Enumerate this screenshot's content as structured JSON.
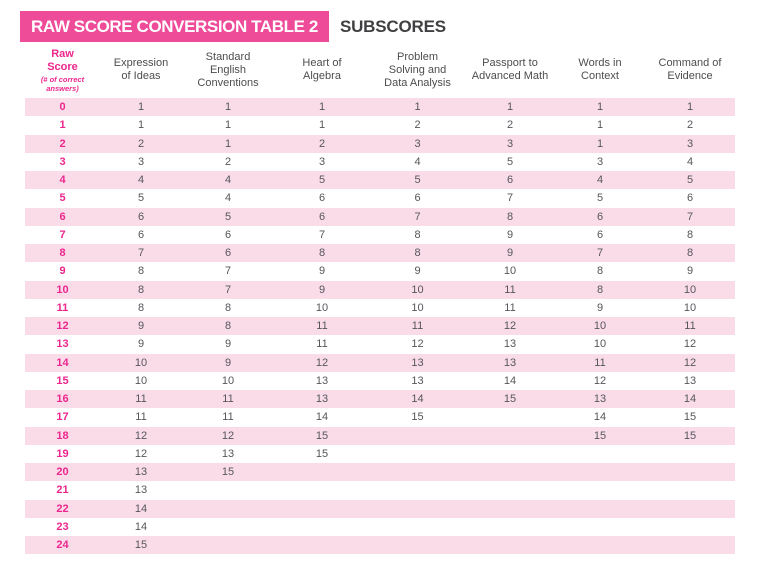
{
  "title": {
    "banner": "RAW SCORE CONVERSION TABLE 2",
    "subtitle": "SUBSCORES"
  },
  "colors": {
    "banner_bg": "#EE4B99",
    "banner_text": "#FFFFFF",
    "subtitle_text": "#404042",
    "header_text": "#4D4D4F",
    "stripe": "#FADCE9",
    "raw_text": "#EC268D",
    "cell_text": "#55565A"
  },
  "table": {
    "raw_header": {
      "title": "Raw\nScore",
      "note": "(# of correct\nanswers)"
    },
    "columns": [
      {
        "id": "expression-of-ideas",
        "label": "Expression\nof Ideas"
      },
      {
        "id": "standard-english-conventions",
        "label": "Standard\nEnglish\nConventions"
      },
      {
        "id": "heart-of-algebra",
        "label": "Heart of\nAlgebra"
      },
      {
        "id": "problem-solving-data-analysis",
        "label": "Problem\nSolving and\nData Analysis"
      },
      {
        "id": "passport-to-advanced-math",
        "label": "Passport to\nAdvanced Math"
      },
      {
        "id": "words-in-context",
        "label": "Words in\nContext"
      },
      {
        "id": "command-of-evidence",
        "label": "Command of\nEvidence"
      }
    ],
    "rows": [
      {
        "raw": "0",
        "values": [
          "1",
          "1",
          "1",
          "1",
          "1",
          "1",
          "1"
        ]
      },
      {
        "raw": "1",
        "values": [
          "1",
          "1",
          "1",
          "2",
          "2",
          "1",
          "2"
        ]
      },
      {
        "raw": "2",
        "values": [
          "2",
          "1",
          "2",
          "3",
          "3",
          "1",
          "3"
        ]
      },
      {
        "raw": "3",
        "values": [
          "3",
          "2",
          "3",
          "4",
          "5",
          "3",
          "4"
        ]
      },
      {
        "raw": "4",
        "values": [
          "4",
          "4",
          "5",
          "5",
          "6",
          "4",
          "5"
        ]
      },
      {
        "raw": "5",
        "values": [
          "5",
          "4",
          "6",
          "6",
          "7",
          "5",
          "6"
        ]
      },
      {
        "raw": "6",
        "values": [
          "6",
          "5",
          "6",
          "7",
          "8",
          "6",
          "7"
        ]
      },
      {
        "raw": "7",
        "values": [
          "6",
          "6",
          "7",
          "8",
          "9",
          "6",
          "8"
        ]
      },
      {
        "raw": "8",
        "values": [
          "7",
          "6",
          "8",
          "8",
          "9",
          "7",
          "8"
        ]
      },
      {
        "raw": "9",
        "values": [
          "8",
          "7",
          "9",
          "9",
          "10",
          "8",
          "9"
        ]
      },
      {
        "raw": "10",
        "values": [
          "8",
          "7",
          "9",
          "10",
          "11",
          "8",
          "10"
        ]
      },
      {
        "raw": "11",
        "values": [
          "8",
          "8",
          "10",
          "10",
          "11",
          "9",
          "10"
        ]
      },
      {
        "raw": "12",
        "values": [
          "9",
          "8",
          "11",
          "11",
          "12",
          "10",
          "11"
        ]
      },
      {
        "raw": "13",
        "values": [
          "9",
          "9",
          "11",
          "12",
          "13",
          "10",
          "12"
        ]
      },
      {
        "raw": "14",
        "values": [
          "10",
          "9",
          "12",
          "13",
          "13",
          "11",
          "12"
        ]
      },
      {
        "raw": "15",
        "values": [
          "10",
          "10",
          "13",
          "13",
          "14",
          "12",
          "13"
        ]
      },
      {
        "raw": "16",
        "values": [
          "11",
          "11",
          "13",
          "14",
          "15",
          "13",
          "14"
        ]
      },
      {
        "raw": "17",
        "values": [
          "11",
          "11",
          "14",
          "15",
          "",
          "14",
          "15"
        ]
      },
      {
        "raw": "18",
        "values": [
          "12",
          "12",
          "15",
          "",
          "",
          "15",
          "15"
        ]
      },
      {
        "raw": "19",
        "values": [
          "12",
          "13",
          "15",
          "",
          "",
          "",
          ""
        ]
      },
      {
        "raw": "20",
        "values": [
          "13",
          "15",
          "",
          "",
          "",
          "",
          ""
        ]
      },
      {
        "raw": "21",
        "values": [
          "13",
          "",
          "",
          "",
          "",
          "",
          ""
        ]
      },
      {
        "raw": "22",
        "values": [
          "14",
          "",
          "",
          "",
          "",
          "",
          ""
        ]
      },
      {
        "raw": "23",
        "values": [
          "14",
          "",
          "",
          "",
          "",
          "",
          ""
        ]
      },
      {
        "raw": "24",
        "values": [
          "15",
          "",
          "",
          "",
          "",
          "",
          ""
        ]
      }
    ]
  }
}
